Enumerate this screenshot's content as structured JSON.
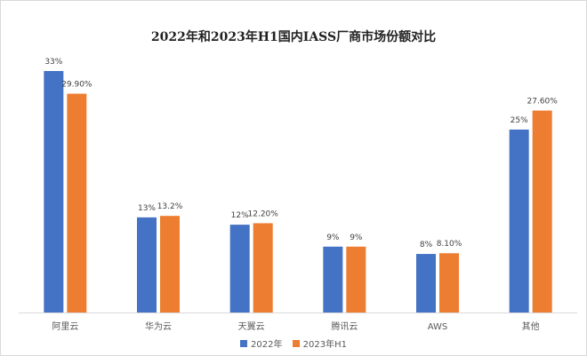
{
  "chart_data": {
    "type": "bar",
    "title": "2022年和2023年H1国内IASS厂商市场份额对比",
    "categories": [
      "阿里云",
      "华为云",
      "天翼云",
      "腾讯云",
      "AWS",
      "其他"
    ],
    "series": [
      {
        "name": "2022年",
        "values": [
          33,
          13,
          12,
          9,
          8,
          25
        ],
        "labels": [
          "33%",
          "13%",
          "12%",
          "9%",
          "8%",
          "25%"
        ],
        "color": "#4472C4"
      },
      {
        "name": "2023年H1",
        "values": [
          29.9,
          13.2,
          12.2,
          9,
          8.1,
          27.6
        ],
        "labels": [
          "29.90%",
          "13.2%",
          "12.20%",
          "9%",
          "8.10%",
          "27.60%"
        ],
        "color": "#ED7D31"
      }
    ],
    "ylim": [
      0,
      34
    ],
    "grid": false,
    "legend_position": "bottom"
  }
}
